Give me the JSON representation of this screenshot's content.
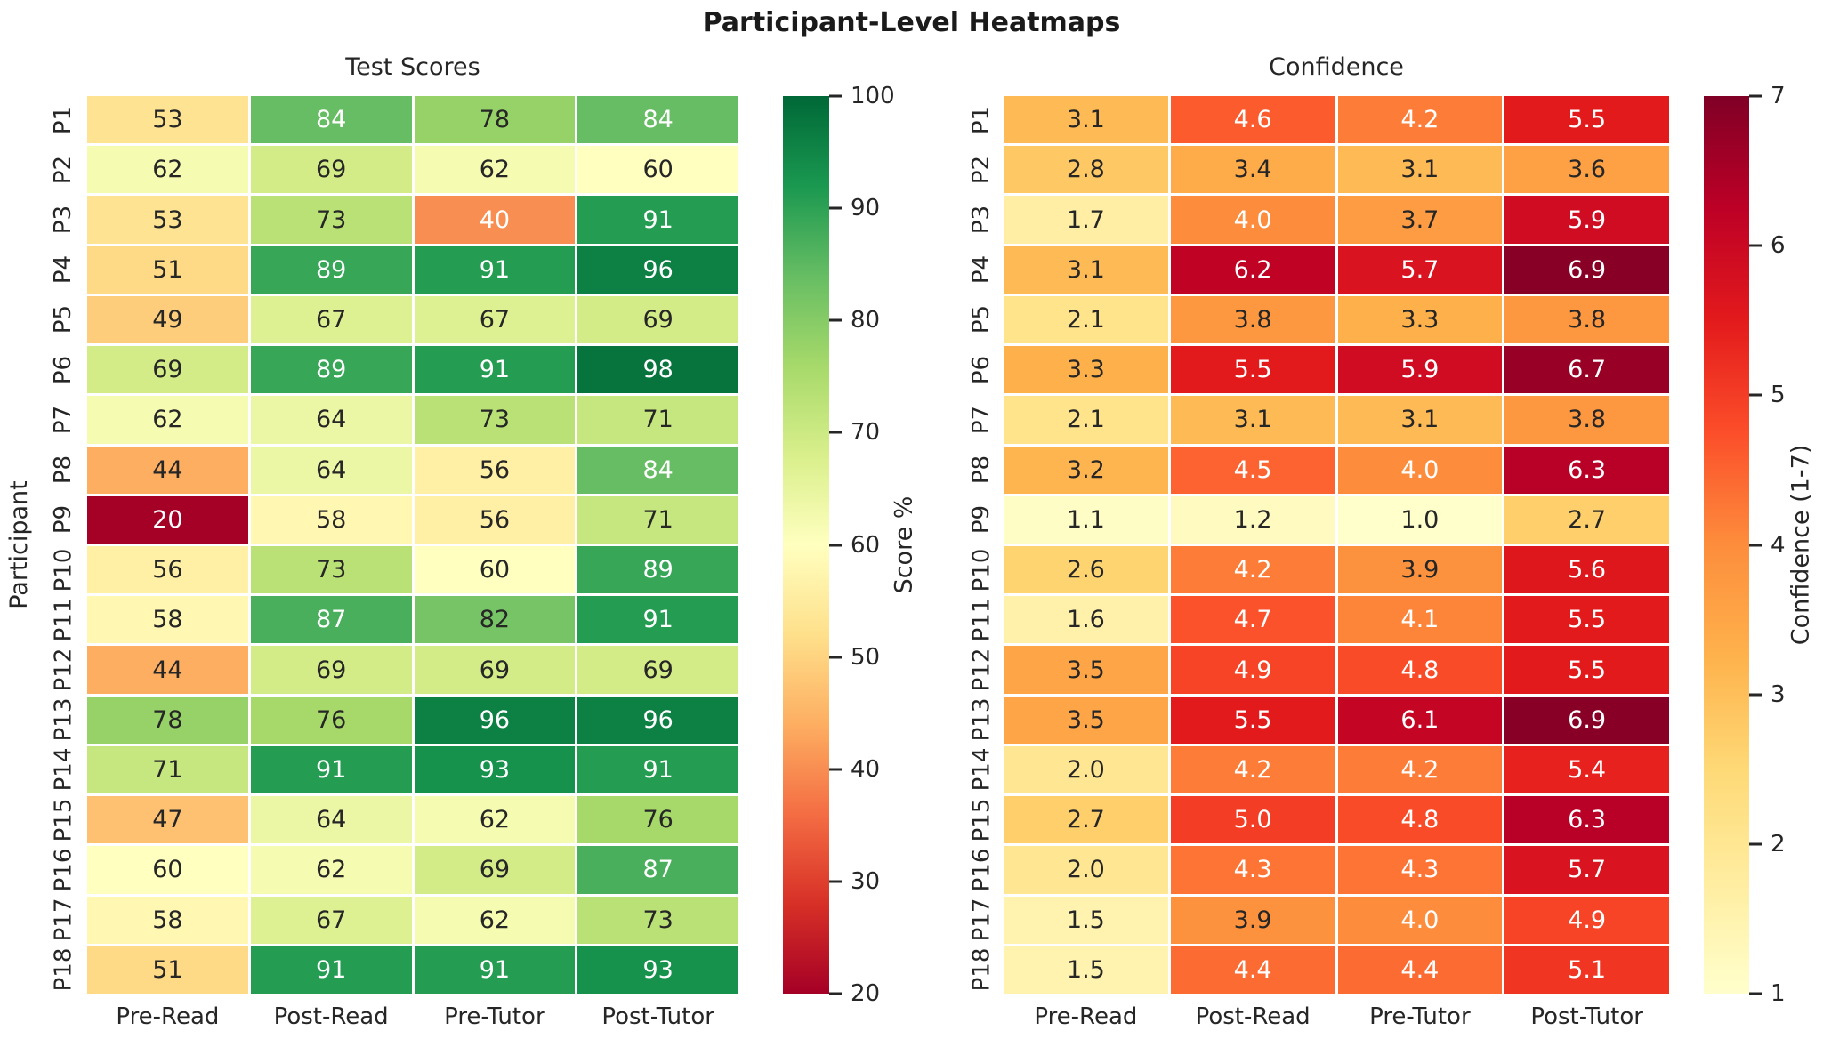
{
  "figure": {
    "title": "Participant-Level Heatmaps",
    "background": "#ffffff",
    "text_color": "#262626"
  },
  "chart_data": [
    {
      "type": "heatmap",
      "title": "Test Scores",
      "ylabel": "Participant",
      "xlabel": "",
      "categories_x": [
        "Pre-Read",
        "Post-Read",
        "Pre-Tutor",
        "Post-Tutor"
      ],
      "categories_y": [
        "P1",
        "P2",
        "P3",
        "P4",
        "P5",
        "P6",
        "P7",
        "P8",
        "P9",
        "P10",
        "P11",
        "P12",
        "P13",
        "P14",
        "P15",
        "P16",
        "P17",
        "P18"
      ],
      "values": [
        [
          53,
          84,
          78,
          84
        ],
        [
          62,
          69,
          62,
          60
        ],
        [
          53,
          73,
          40,
          91
        ],
        [
          51,
          89,
          91,
          96
        ],
        [
          49,
          67,
          67,
          69
        ],
        [
          69,
          89,
          91,
          98
        ],
        [
          62,
          64,
          73,
          71
        ],
        [
          44,
          64,
          56,
          84
        ],
        [
          20,
          58,
          56,
          71
        ],
        [
          56,
          73,
          60,
          89
        ],
        [
          58,
          87,
          82,
          91
        ],
        [
          44,
          69,
          69,
          69
        ],
        [
          78,
          76,
          96,
          96
        ],
        [
          71,
          91,
          93,
          91
        ],
        [
          47,
          64,
          62,
          76
        ],
        [
          60,
          62,
          69,
          87
        ],
        [
          58,
          67,
          62,
          73
        ],
        [
          51,
          91,
          91,
          93
        ]
      ],
      "value_format": "int",
      "colormap": "RdYlGn",
      "vmin": 20,
      "vmax": 100,
      "grid_line_color": "#ffffff",
      "colorbar": {
        "label": "Score %",
        "ticks": [
          100,
          90,
          80,
          70,
          60,
          50,
          40,
          30,
          20
        ]
      }
    },
    {
      "type": "heatmap",
      "title": "Confidence",
      "ylabel": "",
      "xlabel": "",
      "categories_x": [
        "Pre-Read",
        "Post-Read",
        "Pre-Tutor",
        "Post-Tutor"
      ],
      "categories_y": [
        "P1",
        "P2",
        "P3",
        "P4",
        "P5",
        "P6",
        "P7",
        "P8",
        "P9",
        "P10",
        "P11",
        "P12",
        "P13",
        "P14",
        "P15",
        "P16",
        "P17",
        "P18"
      ],
      "values": [
        [
          3.1,
          4.6,
          4.2,
          5.5
        ],
        [
          2.8,
          3.4,
          3.1,
          3.6
        ],
        [
          1.7,
          4.0,
          3.7,
          5.9
        ],
        [
          3.1,
          6.2,
          5.7,
          6.9
        ],
        [
          2.1,
          3.8,
          3.3,
          3.8
        ],
        [
          3.3,
          5.5,
          5.9,
          6.7
        ],
        [
          2.1,
          3.1,
          3.1,
          3.8
        ],
        [
          3.2,
          4.5,
          4.0,
          6.3
        ],
        [
          1.1,
          1.2,
          1.0,
          2.7
        ],
        [
          2.6,
          4.2,
          3.9,
          5.6
        ],
        [
          1.6,
          4.7,
          4.1,
          5.5
        ],
        [
          3.5,
          4.9,
          4.8,
          5.5
        ],
        [
          3.5,
          5.5,
          6.1,
          6.9
        ],
        [
          2.0,
          4.2,
          4.2,
          5.4
        ],
        [
          2.7,
          5.0,
          4.8,
          6.3
        ],
        [
          2.0,
          4.3,
          4.3,
          5.7
        ],
        [
          1.5,
          3.9,
          4.0,
          4.9
        ],
        [
          1.5,
          4.4,
          4.4,
          5.1
        ]
      ],
      "value_format": "1dp",
      "colormap": "YlOrRd",
      "vmin": 1,
      "vmax": 7,
      "grid_line_color": "#ffffff",
      "colorbar": {
        "label": "Confidence (1-7)",
        "ticks": [
          7,
          6,
          5,
          4,
          3,
          2,
          1
        ]
      }
    }
  ],
  "colormaps": {
    "RdYlGn": [
      "#a50026",
      "#d73027",
      "#f46d43",
      "#fdae61",
      "#fee08b",
      "#ffffbf",
      "#d9ef8b",
      "#a6d96a",
      "#66bd63",
      "#1a9850",
      "#006837"
    ],
    "YlOrRd": [
      "#ffffcc",
      "#ffeda0",
      "#fed976",
      "#feb24c",
      "#fd8d3c",
      "#fc4e2a",
      "#e31a1c",
      "#bd0026",
      "#800026"
    ]
  },
  "annotation_colors": {
    "dark": "#262626",
    "light": "#ffffff"
  }
}
